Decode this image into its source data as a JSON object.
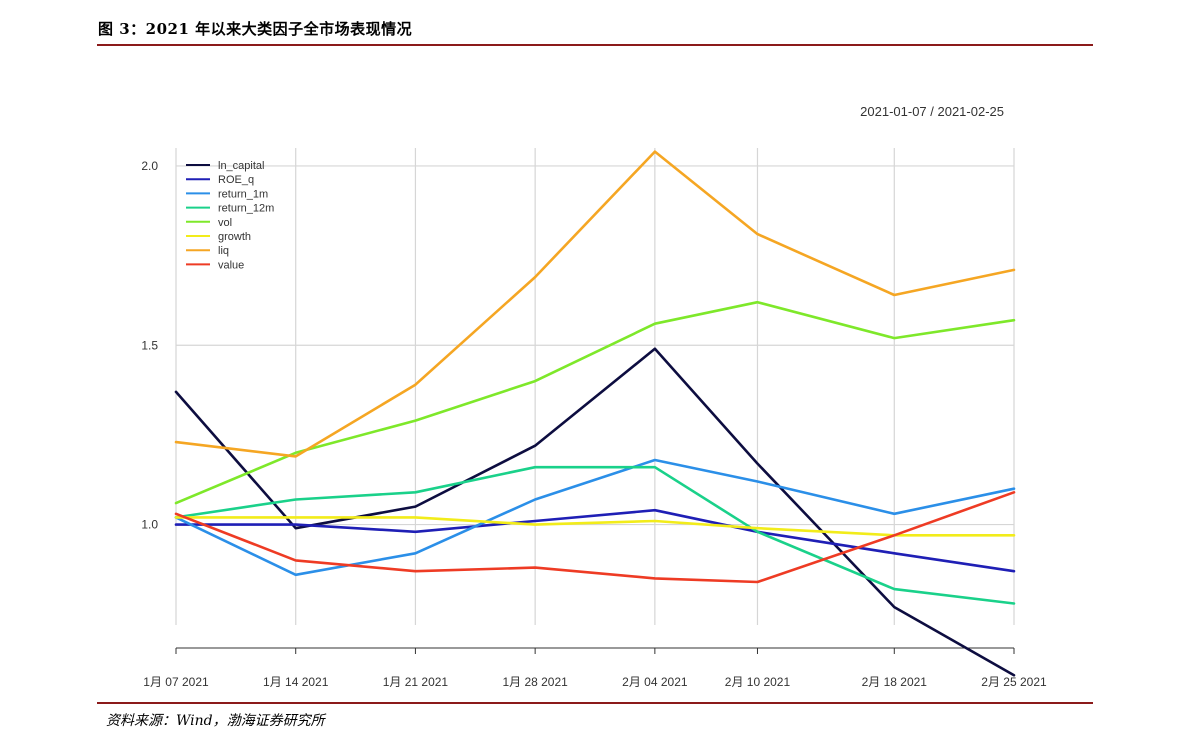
{
  "figure": {
    "title": "图 3：2021 年以来大类因子全市场表现情况",
    "source": "资料来源：Wind，渤海证券研究所"
  },
  "chart_data": {
    "type": "line",
    "date_range": "2021-01-07 / 2021-02-25",
    "x": [
      "1月 07 2021",
      "1月 14 2021",
      "1月 21 2021",
      "1月 28 2021",
      "2月 04 2021",
      "2月 10 2021",
      "2月 18 2021",
      "2月 25 2021"
    ],
    "x_days": [
      0,
      7,
      14,
      21,
      28,
      34,
      42,
      49
    ],
    "yticks": [
      1.0,
      1.5,
      2.0
    ],
    "yticklabels": [
      "1.0",
      "1.5",
      "2.0"
    ],
    "ylim": [
      0.72,
      2.05
    ],
    "grid": true,
    "legend_position": "top-left",
    "series": [
      {
        "name": "ln_capital",
        "color": "#0d0d40",
        "values": [
          1.37,
          0.99,
          1.05,
          1.22,
          1.49,
          1.17,
          0.77,
          0.58
        ]
      },
      {
        "name": "ROE_q",
        "color": "#1f1fb5",
        "values": [
          1.0,
          1.0,
          0.98,
          1.01,
          1.04,
          0.98,
          0.92,
          0.87
        ]
      },
      {
        "name": "return_1m",
        "color": "#2b8fe8",
        "values": [
          1.02,
          0.86,
          0.92,
          1.07,
          1.18,
          1.12,
          1.03,
          1.1
        ]
      },
      {
        "name": "return_12m",
        "color": "#1ad18a",
        "values": [
          1.02,
          1.07,
          1.09,
          1.16,
          1.16,
          0.98,
          0.82,
          0.78
        ]
      },
      {
        "name": "vol",
        "color": "#7ee82a",
        "values": [
          1.06,
          1.2,
          1.29,
          1.4,
          1.56,
          1.62,
          1.52,
          1.57
        ]
      },
      {
        "name": "growth",
        "color": "#f2ec1a",
        "values": [
          1.02,
          1.02,
          1.02,
          1.0,
          1.01,
          0.99,
          0.97,
          0.97
        ]
      },
      {
        "name": "liq",
        "color": "#f5a623",
        "values": [
          1.23,
          1.19,
          1.39,
          1.69,
          2.04,
          1.81,
          1.64,
          1.71
        ]
      },
      {
        "name": "value",
        "color": "#ee3b24",
        "values": [
          1.03,
          0.9,
          0.87,
          0.88,
          0.85,
          0.84,
          0.97,
          1.09
        ]
      }
    ]
  }
}
